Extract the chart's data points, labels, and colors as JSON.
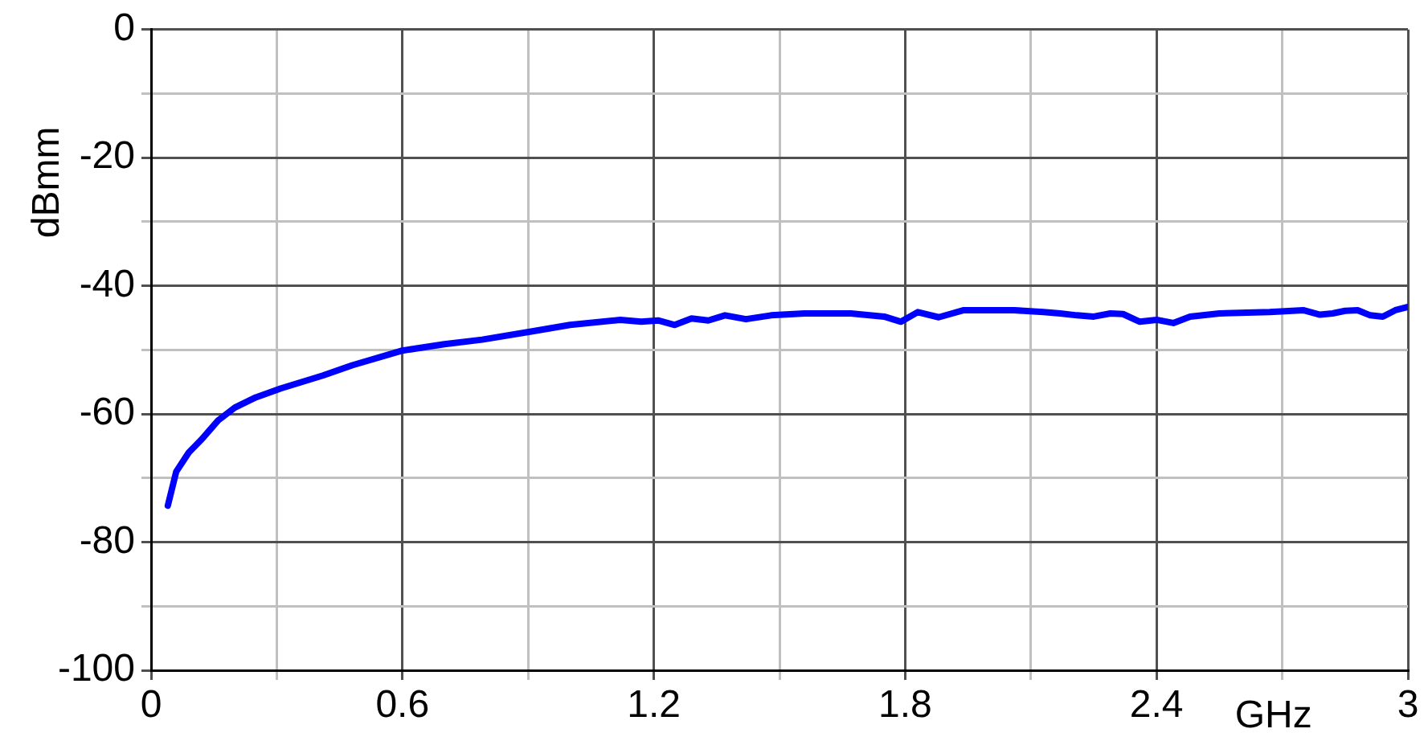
{
  "chart_data": {
    "type": "line",
    "xlabel": "GHz",
    "ylabel": "dBmm",
    "xlim": [
      0,
      3
    ],
    "ylim": [
      -100,
      0
    ],
    "xticks": [
      0,
      {
        "value": 0.3,
        "label": null
      },
      0.6,
      {
        "value": 0.9,
        "label": null
      },
      1.2,
      {
        "value": 1.5,
        "label": null
      },
      1.8,
      {
        "value": 2.1,
        "label": null
      },
      2.4,
      {
        "value": 2.7,
        "label": null
      },
      3
    ],
    "yticks": [
      -100,
      {
        "value": -90,
        "label": null
      },
      -80,
      {
        "value": -70,
        "label": null
      },
      -60,
      {
        "value": -50,
        "label": null
      },
      -40,
      {
        "value": -30,
        "label": null
      },
      -20,
      {
        "value": -10,
        "label": null
      },
      0
    ],
    "grid": true,
    "marker": "none",
    "line_style": "solid",
    "series": [
      {
        "color": "#0000ff",
        "x": [
          0.04,
          0.06,
          0.09,
          0.12,
          0.16,
          0.2,
          0.25,
          0.31,
          0.41,
          0.48,
          0.6,
          0.7,
          0.79,
          0.91,
          1.0,
          1.12,
          1.17,
          1.21,
          1.25,
          1.29,
          1.33,
          1.37,
          1.42,
          1.48,
          1.56,
          1.67,
          1.75,
          1.79,
          1.83,
          1.88,
          1.94,
          2.06,
          2.13,
          2.17,
          2.21,
          2.25,
          2.29,
          2.32,
          2.36,
          2.4,
          2.44,
          2.48,
          2.55,
          2.67,
          2.75,
          2.79,
          2.82,
          2.85,
          2.88,
          2.91,
          2.94,
          2.97,
          3.0
        ],
        "values": [
          -74.3,
          -69,
          -66,
          -64,
          -61,
          -59,
          -57.4,
          -56,
          -54,
          -52.4,
          -50.1,
          -49.1,
          -48.4,
          -47.1,
          -46.1,
          -45.3,
          -45.6,
          -45.4,
          -46.1,
          -45.1,
          -45.4,
          -44.6,
          -45.2,
          -44.6,
          -44.3,
          -44.3,
          -44.8,
          -45.6,
          -44.1,
          -44.9,
          -43.8,
          -43.8,
          -44.1,
          -44.3,
          -44.6,
          -44.8,
          -44.3,
          -44.4,
          -45.6,
          -45.3,
          -45.8,
          -44.8,
          -44.3,
          -44.1,
          -43.8,
          -44.5,
          -44.3,
          -43.9,
          -43.8,
          -44.6,
          -44.8,
          -43.8,
          -43.3
        ]
      }
    ]
  }
}
